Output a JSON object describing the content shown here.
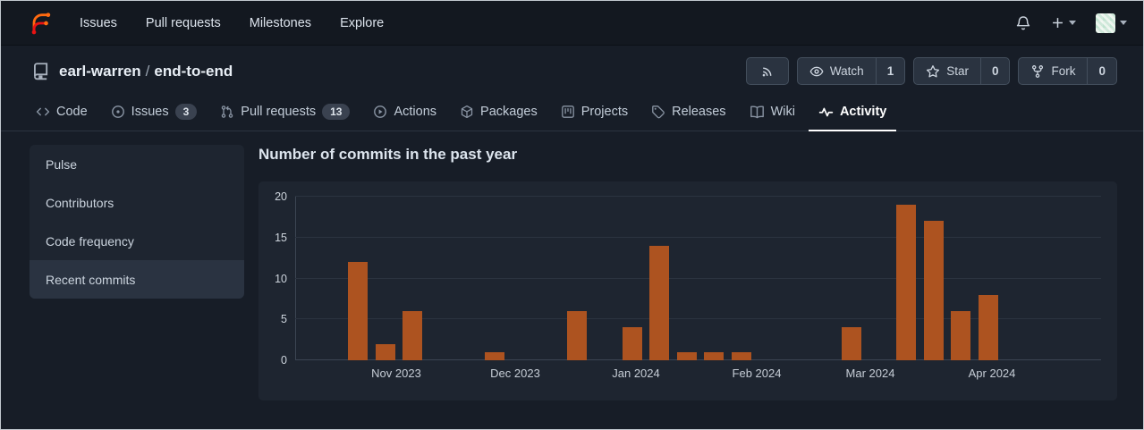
{
  "navbar": {
    "links": [
      {
        "id": "issues",
        "label": "Issues"
      },
      {
        "id": "pull-requests",
        "label": "Pull requests"
      },
      {
        "id": "milestones",
        "label": "Milestones"
      },
      {
        "id": "explore",
        "label": "Explore"
      }
    ],
    "right_icons": [
      "bell-icon",
      "plus-icon",
      "avatar"
    ]
  },
  "repo_header": {
    "owner": "earl-warren",
    "separator": "/",
    "name": "end-to-end",
    "actions": [
      {
        "id": "rss",
        "icon": "rss-icon"
      },
      {
        "id": "watch",
        "icon": "eye-icon",
        "label": "Watch",
        "count": "1"
      },
      {
        "id": "star",
        "icon": "star-icon",
        "label": "Star",
        "count": "0"
      },
      {
        "id": "fork",
        "icon": "fork-icon",
        "label": "Fork",
        "count": "0"
      }
    ]
  },
  "tabs": [
    {
      "id": "code",
      "label": "Code",
      "icon": "code-icon"
    },
    {
      "id": "issues",
      "label": "Issues",
      "icon": "issue-icon",
      "badge": "3"
    },
    {
      "id": "pull-requests",
      "label": "Pull requests",
      "icon": "pull-request-icon",
      "badge": "13"
    },
    {
      "id": "actions",
      "label": "Actions",
      "icon": "play-icon"
    },
    {
      "id": "packages",
      "label": "Packages",
      "icon": "package-icon"
    },
    {
      "id": "projects",
      "label": "Projects",
      "icon": "project-icon"
    },
    {
      "id": "releases",
      "label": "Releases",
      "icon": "tag-icon"
    },
    {
      "id": "wiki",
      "label": "Wiki",
      "icon": "book-icon"
    },
    {
      "id": "activity",
      "label": "Activity",
      "icon": "activity-icon",
      "active": true
    }
  ],
  "sidebar": {
    "items": [
      {
        "id": "pulse",
        "label": "Pulse"
      },
      {
        "id": "contributors",
        "label": "Contributors"
      },
      {
        "id": "code-frequency",
        "label": "Code frequency"
      },
      {
        "id": "recent-commits",
        "label": "Recent commits",
        "active": true
      }
    ]
  },
  "main": {
    "title": "Number of commits in the past year"
  },
  "chart_data": {
    "type": "bar",
    "title": "Number of commits in the past year",
    "x_unit": "week",
    "values": [
      12,
      2,
      6,
      0,
      0,
      1,
      0,
      0,
      6,
      0,
      4,
      14,
      1,
      1,
      1,
      0,
      0,
      0,
      4,
      0,
      19,
      17,
      6,
      8
    ],
    "x_labels": [
      "Nov 2023",
      "Dec 2023",
      "Jan 2024",
      "Feb 2024",
      "Mar 2024",
      "Apr 2024"
    ],
    "y_ticks": [
      0,
      5,
      10,
      15,
      20
    ],
    "ylim": [
      0,
      20
    ],
    "grid": true,
    "legend": "none",
    "bar_color": "#ad5320"
  },
  "colors": {
    "brand_orange": "#ff6a10",
    "brand_red": "#e81313",
    "bar_orange": "#ad5320",
    "active_tab_underline": "#ffffff",
    "navbar_bg": "#131820",
    "page_bg": "#171d27",
    "card_bg": "#1e2530"
  }
}
